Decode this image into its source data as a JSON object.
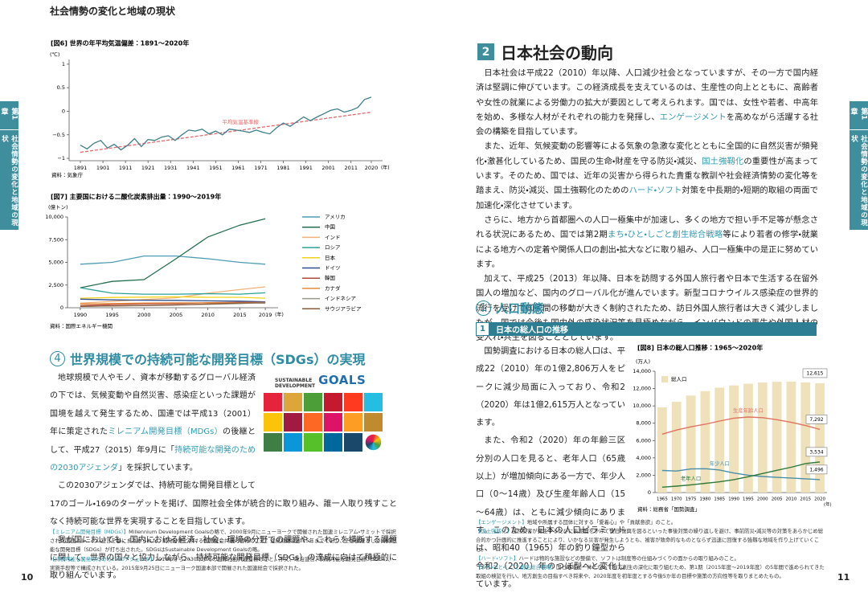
{
  "header": {
    "running_title": "社会情勢の変化と地域の現状"
  },
  "side_tab": {
    "chapter": "第1章",
    "title": "社会情勢の変化と地域の現状"
  },
  "page_numbers": {
    "left": "10",
    "right": "11"
  },
  "sdgs_section": {
    "number": "4",
    "title": "世界規模での持続可能な開発目標（SDGs）の実現",
    "logo": {
      "line1": "SUSTAINABLE",
      "line2": "DEVELOPMENT",
      "goals": "GOALS"
    },
    "paragraphs": [
      [
        "地球規模で人やモノ、資本が移動するグローバル経済の下では、気候変動や自然災害、感染症といった課題が国境を越えて発生するため、国連では平成13（2001）年に策定された",
        {
          "em": "ミレニアム開発目標（MDGs）"
        },
        "の後継として、平成27（2015）年9月に「",
        {
          "em": "持続可能な開発のための2030アジェンダ"
        },
        "」を採択しています。"
      ],
      [
        "この2030アジェンダでは、持続可能な開発目標として17のゴール・169のターゲットを掲げ、国際社会全体が統合的に取り組み、誰一人取り残すことなく持続可能な世界を実現することを目指しています。"
      ],
      [
        "我が国においても、国内における経済、社会、環境の分野での課題や、これらを横断する課題に関して、世界の国々と協力しながら、持続可能な開発目標（SDGs）の達成に向けて積極的に取り組んでいます。"
      ]
    ],
    "footnotes": [
      {
        "term": "【ミレニアム開発目標（MDGs）】",
        "text": "Millennium Development Goalsの略で、2000年9月にニューヨークで開催された国連ミレニアム・サミットで採択された国連ミレニアム宣言を基にまとめられた、開発分野における国際社会共通の目標のこと。達成期限は2015年までであり、その後継として持続可能な開発目標（SDGs）が打ち出された。SDGsはSustainable Development Goalsの略。"
      },
      {
        "term": "【持続可能な開発のための2030アジェンダ】",
        "text": "2016年から2030年までの国際社会共通目標のこと。序文、政治宣言、持続可能な開発目標（SDGs）、実施手段等で構成されている。2015年9月25日にニューヨーク国連本部で開催された国連総会で採択された。"
      }
    ]
  },
  "society_section": {
    "number": "2",
    "title": "日本社会の動向",
    "paragraphs": [
      [
        "日本社会は平成22（2010）年以降、人口減少社会となっていますが、その一方で国内経済は堅調に伸びています。この経済成長を支えているのは、生産性の向上とともに、高齢者や女性の就業による労働力の拡大が要因として考えられます。国では、女性や若者、中高年を始め、多様な人材がそれぞれの能力を発揮し、",
        {
          "em": "エンゲージメント"
        },
        "を高めながら活躍する社会の構築を目指しています。"
      ],
      [
        "また、近年、気候変動の影響等による気象の急激な変化とともに全国的に自然災害が頻発化・激甚化しているため、国民の生命・財産を守る防災・減災、",
        {
          "em": "国土強靱化"
        },
        "の重要性が高まっています。そのため、国では、近年の災害から得られた貴重な教訓や社会経済情勢の変化等を踏まえ、防災・減災、国土強靱化のための",
        {
          "em": "ハード・ソフト"
        },
        "対策を中長期的・短期的取組の両面で加速化・深化させています。"
      ],
      [
        "さらに、地方から首都圏への人口一極集中が加速し、多くの地方で担い手不足等が懸念される状況にあるため、国では第2期",
        {
          "em": "まち・ひと・しごと創生総合戦略"
        },
        "等により若者の修学・就業による地方への定着や関係人口の創出・拡大などに取り組み、人口一極集中の是正に努めています。"
      ],
      [
        "加えて、平成25（2013）年以降、日本を訪問する外国人旅行者や日本で生活する在留外国人の増加など、国内のグローバル化が進んでいます。新型コロナウイルス感染症の世界的流行を受けて国家間の移動が大きく制約されたため、訪日外国人旅行者は大きく減少しましたが、国では今後も国内外の感染状況等を見極めながら、インバウンドの再生や外国人材の受入れ・共生を図ることとしています。"
      ]
    ],
    "subsection": {
      "number": "1",
      "title": "人口動態"
    },
    "topic": {
      "number": "1",
      "title": "日本の総人口の推移"
    },
    "population_paragraphs": [
      [
        "国勢調査における日本の総人口は、平成22（2010）年の1億2,806万人をピークに減少局面に入っており、令和2（2020）年は1億2,615万人となっています。"
      ],
      [
        "また、令和2（2020）年の年齢三区分別の人口を見ると、老年人口（65歳以上）が増加傾向にある一方で、年少人口（0～14歳）及び生産年齢人口（15～64歳）は、ともに減少傾向にあります。このため、日本の人口ピラミッドは、昭和40（1965）年の釣り鐘型から令和2（2020）年のつぼ型へと変化しています。"
      ]
    ],
    "footnotes": [
      {
        "term": "【エンゲージメント】",
        "text": "地域や所属する団体に対する「愛着心」や「貢献意欲」のこと。"
      },
      {
        "term": "【国土強靱化】",
        "text": "自然災害が発生するたびに長期間をかけて復旧・復興を図るといった事後対策の繰り返しを避け、事前防災・減災等の対策をあらかじめ総合的かつ計画的に推進することにより、いかなる災害が発生しようとも、被害が致命的なものとならず迅速に回復する強靱な地域を作り上げていくこと。"
      },
      {
        "term": "【ハード・ソフト】",
        "text": "ハードは物的な施設などの整備で、ソフトは制度等の仕組みづくりの面からの取り組みのこと。"
      },
      {
        "term": "【まち・ひと・しごと創生総合戦略】",
        "text": "国と地域が一体となって地方創生の深化に取り組むため、第1期（2015年度～2019年度）の5年間で進められてきた取組の検証を行い、地方創生の目指すべき将来や、2020年度を初年度とする今後5か年の目標や施策の方向性等を取りまとめたもの。"
      }
    ]
  },
  "chart_data": [
    {
      "type": "line",
      "title": "[図6] 世界の年平均気温偏差：1891～2020年",
      "y_unit": "(℃)",
      "x_unit": "(年)",
      "source": "資料：気象庁",
      "x": [
        1891,
        1894,
        1897,
        1900,
        1903,
        1906,
        1909,
        1912,
        1915,
        1918,
        1921,
        1924,
        1927,
        1930,
        1933,
        1936,
        1939,
        1942,
        1945,
        1948,
        1951,
        1954,
        1957,
        1960,
        1963,
        1966,
        1969,
        1972,
        1975,
        1978,
        1981,
        1984,
        1987,
        1990,
        1993,
        1996,
        1999,
        2002,
        2005,
        2008,
        2011,
        2014,
        2017,
        2020
      ],
      "series": [
        {
          "color": "#3f7f8c",
          "values": [
            -0.72,
            -0.8,
            -0.68,
            -0.62,
            -0.78,
            -0.7,
            -0.82,
            -0.72,
            -0.58,
            -0.75,
            -0.6,
            -0.62,
            -0.55,
            -0.52,
            -0.62,
            -0.5,
            -0.4,
            -0.42,
            -0.38,
            -0.48,
            -0.42,
            -0.5,
            -0.38,
            -0.4,
            -0.42,
            -0.45,
            -0.4,
            -0.45,
            -0.48,
            -0.35,
            -0.25,
            -0.32,
            -0.22,
            -0.12,
            -0.2,
            -0.12,
            -0.05,
            0.02,
            0.05,
            -0.02,
            0.02,
            0.08,
            0.25,
            0.3
          ]
        }
      ],
      "trend": {
        "label": "平均気温基準線",
        "color": "#e36a6a",
        "x": [
          1891,
          2020
        ],
        "values": [
          -0.87,
          -0.02
        ]
      },
      "xlim": [
        1886,
        2025
      ],
      "xticks": [
        1891,
        1901,
        1911,
        1921,
        1931,
        1941,
        1951,
        1961,
        1971,
        1981,
        1991,
        2001,
        2011,
        2020
      ],
      "ylim": [
        -1.05,
        1.1
      ],
      "yticks": [
        1,
        0.5,
        0,
        {
          "value": -0.5,
          "label": "−0.5"
        },
        {
          "value": -1,
          "label": "−1"
        }
      ]
    },
    {
      "type": "line",
      "title": "[図7] 主要国における二酸化炭素排出量：1990～2019年",
      "y_unit": "(億トン)",
      "x_unit": "(年)",
      "source": "資料：国際エネルギー機関",
      "legend": "right",
      "x": [
        1990,
        1995,
        2000,
        2005,
        2010,
        2015,
        2019
      ],
      "series": [
        {
          "name": "アメリカ",
          "color": "#4f9db3",
          "values": [
            4800,
            5000,
            5700,
            5700,
            5400,
            5000,
            4800
          ]
        },
        {
          "name": "中国",
          "color": "#256e4f",
          "values": [
            2200,
            2900,
            3100,
            5400,
            7800,
            9100,
            9800
          ]
        },
        {
          "name": "インド",
          "color": "#f1b27a",
          "values": [
            500,
            700,
            900,
            1100,
            1600,
            2000,
            2300
          ]
        },
        {
          "name": "ロシア",
          "color": "#2aa198",
          "values": [
            2200,
            1600,
            1500,
            1500,
            1550,
            1500,
            1650
          ]
        },
        {
          "name": "日本",
          "color": "#f2d21b",
          "values": [
            1050,
            1130,
            1170,
            1200,
            1150,
            1150,
            1050
          ]
        },
        {
          "name": "ドイツ",
          "color": "#2f4f8f",
          "values": [
            950,
            870,
            830,
            810,
            760,
            730,
            650
          ]
        },
        {
          "name": "韓国",
          "color": "#b5473a",
          "values": [
            230,
            350,
            430,
            460,
            560,
            590,
            590
          ]
        },
        {
          "name": "カナダ",
          "color": "#e58a3c",
          "values": [
            420,
            460,
            520,
            540,
            540,
            550,
            570
          ]
        },
        {
          "name": "インドネシア",
          "color": "#9a9a8a",
          "values": [
            140,
            200,
            260,
            320,
            380,
            460,
            580
          ]
        },
        {
          "name": "サウジアラビア",
          "color": "#8b5a3c",
          "values": [
            150,
            200,
            240,
            300,
            420,
            520,
            520
          ]
        }
      ],
      "xlim": [
        1988,
        2021
      ],
      "xticks": [
        1990,
        1995,
        2000,
        2005,
        2010,
        2015,
        2019
      ],
      "ylim": [
        0,
        10000
      ],
      "yticks": [
        0,
        {
          "value": 2500,
          "label": "2,500"
        },
        {
          "value": 5000,
          "label": "5,000"
        },
        {
          "value": 7500,
          "label": "7,500"
        },
        {
          "value": 10000,
          "label": "10,000"
        }
      ]
    },
    {
      "type": "combo",
      "title": "[図8] 日本の総人口推移：1965～2020年",
      "y_unit": "(万人)",
      "x_unit": "(年)",
      "source": "資料：総務省「国勢調査」",
      "categories": [
        "1965",
        "1970",
        "1975",
        "1980",
        "1985",
        "1990",
        "1995",
        "2000",
        "2005",
        "2010",
        "2015",
        "2020"
      ],
      "series": [
        {
          "name": "総人口",
          "kind": "bar",
          "color": "#efe1ba",
          "values": [
            9828,
            10467,
            11194,
            11706,
            12105,
            12361,
            12557,
            12693,
            12777,
            12806,
            12709,
            12615
          ],
          "value_labels": [
            null,
            null,
            null,
            null,
            null,
            null,
            null,
            null,
            null,
            null,
            null,
            "12,615"
          ]
        },
        {
          "name": "生産年齢人口",
          "kind": "line",
          "color": "#e0735f",
          "values": [
            6744,
            7212,
            7581,
            7883,
            8251,
            8590,
            8716,
            8638,
            8409,
            8103,
            7728,
            7292
          ],
          "value_labels": [
            null,
            null,
            null,
            null,
            null,
            null,
            null,
            null,
            null,
            null,
            null,
            "7,292"
          ]
        },
        {
          "name": "年少人口",
          "kind": "line",
          "color": "#4a8fa8",
          "values": [
            2553,
            2482,
            2722,
            2751,
            2603,
            2249,
            2001,
            1851,
            1752,
            1680,
            1589,
            1496
          ],
          "value_labels": [
            null,
            null,
            null,
            null,
            null,
            null,
            null,
            null,
            null,
            null,
            null,
            "1,496"
          ]
        },
        {
          "name": "老年人口",
          "kind": "line",
          "color": "#2f7a3a",
          "values": [
            624,
            739,
            887,
            1065,
            1247,
            1489,
            1826,
            2201,
            2567,
            2925,
            3347,
            3534
          ],
          "value_labels": [
            null,
            null,
            null,
            null,
            null,
            null,
            null,
            null,
            null,
            null,
            null,
            "3,534"
          ]
        }
      ],
      "ylim": [
        0,
        14000
      ],
      "yticks": [
        0,
        {
          "value": 2000,
          "label": "2,000"
        },
        {
          "value": 4000,
          "label": "4,000"
        },
        {
          "value": 6000,
          "label": "6,000"
        },
        {
          "value": 8000,
          "label": "8,000"
        },
        {
          "value": 10000,
          "label": "10,000"
        },
        {
          "value": 12000,
          "label": "12,000"
        },
        {
          "value": 14000,
          "label": "14,000"
        }
      ]
    }
  ]
}
